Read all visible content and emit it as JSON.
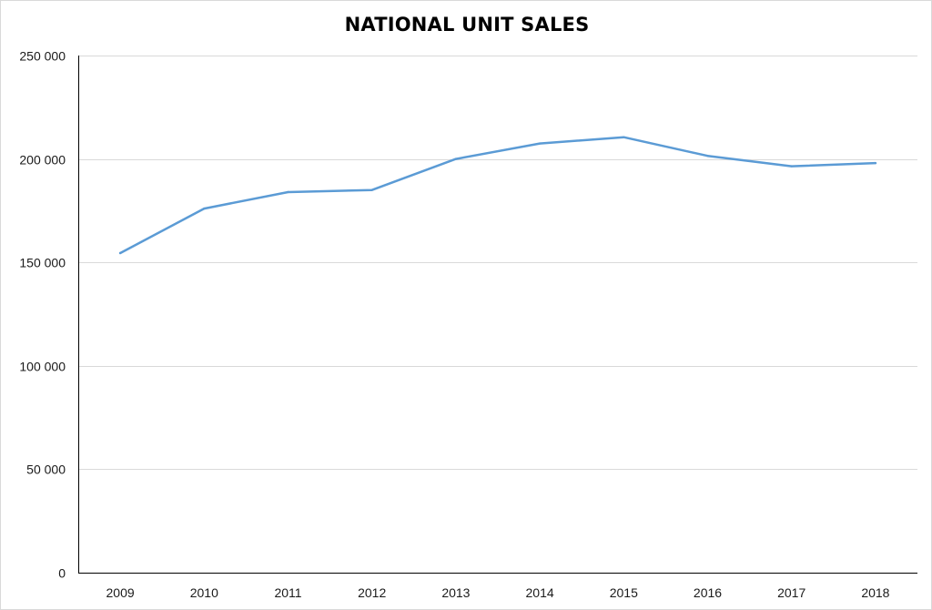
{
  "chart_data": {
    "type": "line",
    "title": "NATIONAL UNIT SALES",
    "xlabel": "",
    "ylabel": "",
    "categories": [
      "2009",
      "2010",
      "2011",
      "2012",
      "2013",
      "2014",
      "2015",
      "2016",
      "2017",
      "2018"
    ],
    "series": [
      {
        "values": [
          154500,
          176000,
          184000,
          185000,
          200000,
          207500,
          210500,
          201500,
          196500,
          198000
        ]
      }
    ],
    "ylim": [
      0,
      250000
    ],
    "y_ticks": [
      0,
      50000,
      100000,
      150000,
      200000,
      250000
    ],
    "y_tick_labels": [
      "0",
      "50 000",
      "100 000",
      "150 000",
      "200 000",
      "250 000"
    ],
    "grid": true,
    "legend": "none",
    "colors": {
      "line": "#5b9bd5",
      "grid": "#d9d9d9",
      "axis": "#000000"
    }
  }
}
